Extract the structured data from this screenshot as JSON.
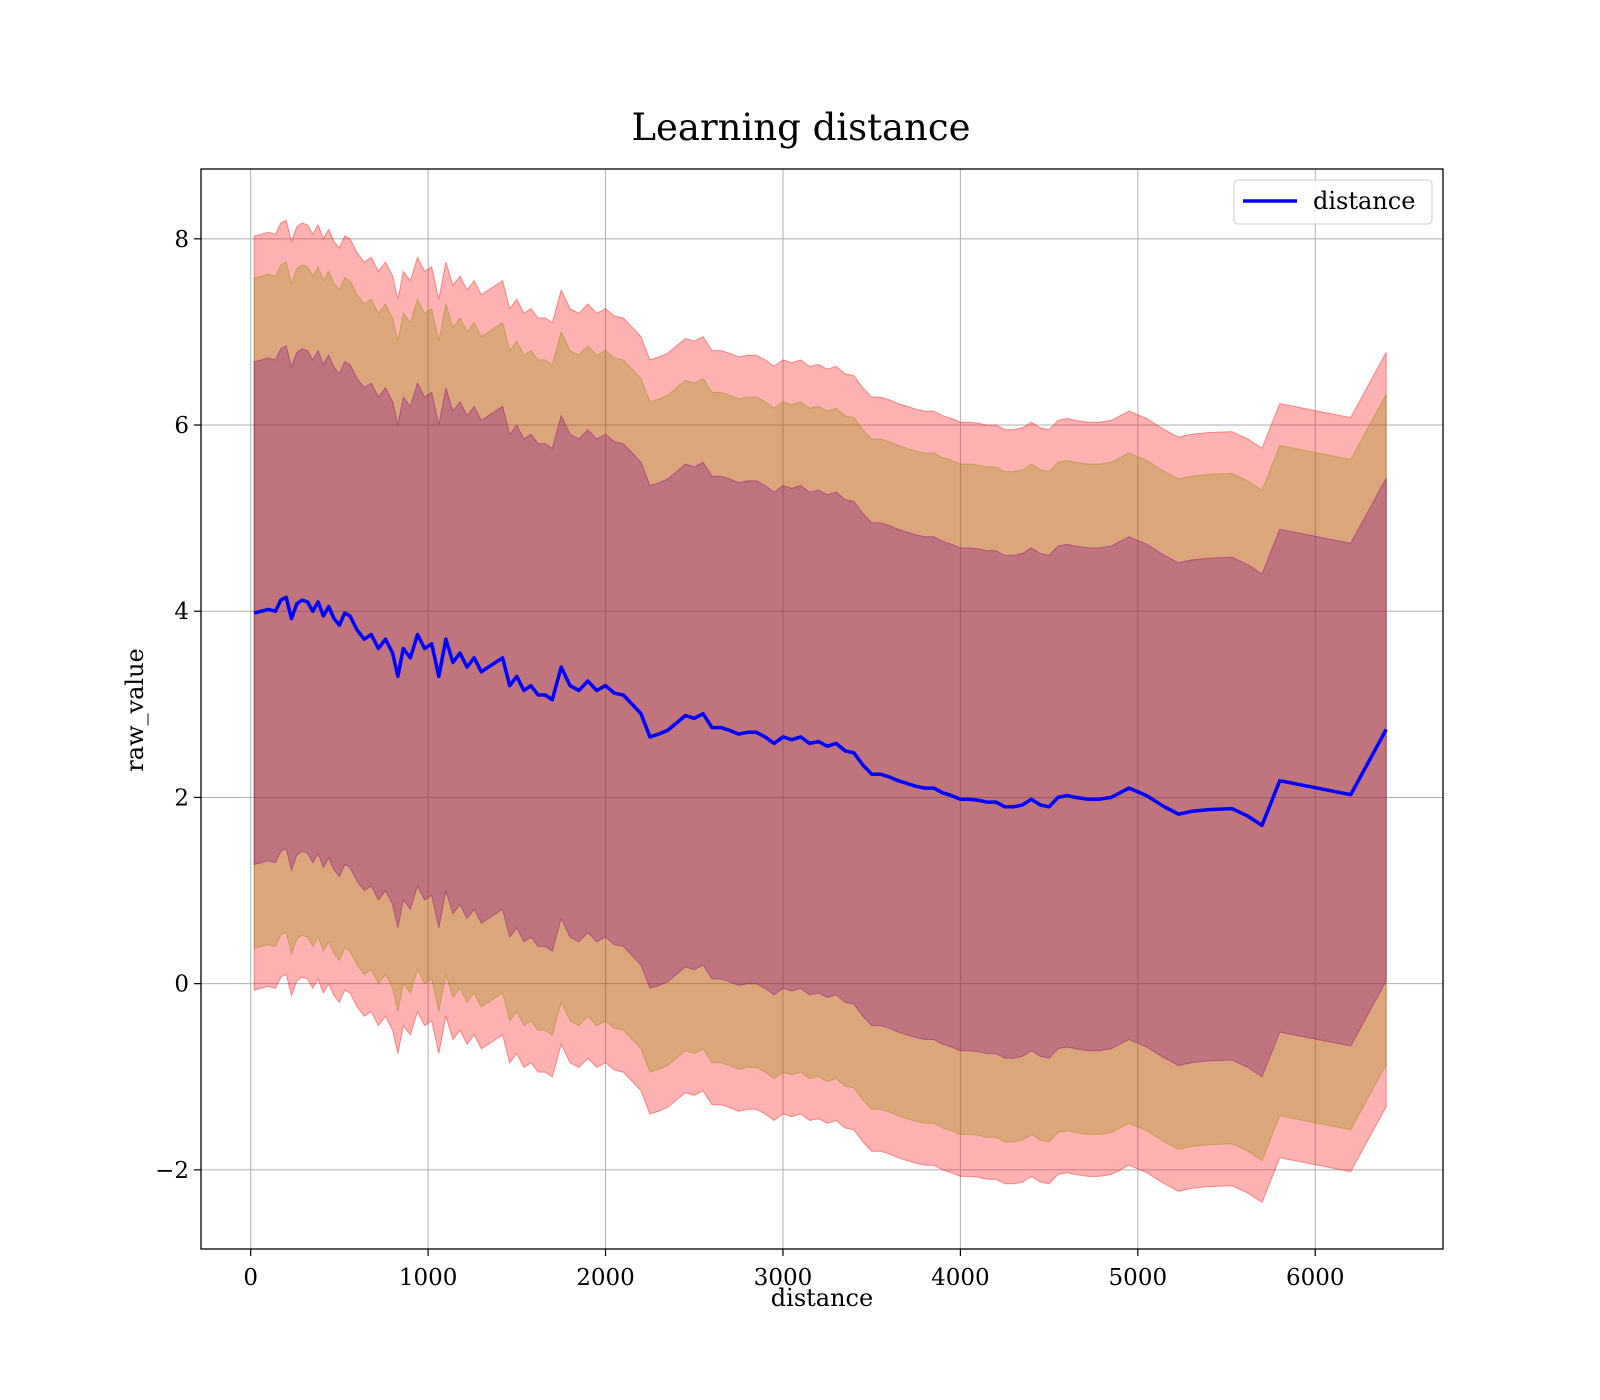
{
  "chart_data": {
    "type": "line",
    "title": "Learning distance",
    "xlabel": "distance",
    "ylabel": "raw_value",
    "xlim": [
      -280,
      6720
    ],
    "ylim": [
      -2.85,
      8.75
    ],
    "xticks": [
      0,
      1000,
      2000,
      3000,
      4000,
      5000,
      6000
    ],
    "yticks": [
      -2,
      0,
      2,
      4,
      6,
      8
    ],
    "ytick_labels": [
      "−2",
      "0",
      "2",
      "4",
      "6",
      "8"
    ],
    "grid": true,
    "legend": {
      "position": "upper-right",
      "entries": [
        "distance"
      ]
    },
    "colors": {
      "line": "#0000ff",
      "outer_band": "#ff0000",
      "middle_band": "#8b8b00",
      "inner_band": "#800080",
      "grid": "#b0b0b0"
    },
    "band_half_widths": [
      2.7,
      3.6,
      4.05
    ],
    "series": [
      {
        "name": "distance",
        "x": [
          20,
          60,
          100,
          140,
          170,
          200,
          230,
          260,
          290,
          320,
          350,
          380,
          410,
          440,
          470,
          500,
          530,
          560,
          600,
          640,
          680,
          720,
          760,
          800,
          830,
          860,
          900,
          940,
          980,
          1020,
          1060,
          1100,
          1140,
          1180,
          1220,
          1260,
          1300,
          1340,
          1380,
          1420,
          1460,
          1500,
          1540,
          1580,
          1620,
          1660,
          1700,
          1750,
          1800,
          1850,
          1900,
          1950,
          2000,
          2050,
          2100,
          2150,
          2200,
          2250,
          2300,
          2350,
          2400,
          2450,
          2500,
          2550,
          2600,
          2650,
          2700,
          2750,
          2800,
          2850,
          2900,
          2950,
          3000,
          3050,
          3100,
          3150,
          3200,
          3250,
          3300,
          3350,
          3400,
          3450,
          3500,
          3550,
          3600,
          3650,
          3700,
          3750,
          3800,
          3850,
          3900,
          3950,
          4000,
          4050,
          4100,
          4150,
          4200,
          4250,
          4300,
          4350,
          4400,
          4450,
          4500,
          4550,
          4600,
          4650,
          4720,
          4780,
          4850,
          4950,
          5050,
          5150,
          5230,
          5300,
          5400,
          5530,
          5620,
          5700,
          5800,
          6200,
          6400
        ],
        "values": [
          3.98,
          4.0,
          4.02,
          4.0,
          4.12,
          4.15,
          3.92,
          4.08,
          4.12,
          4.1,
          4.0,
          4.1,
          3.95,
          4.05,
          3.92,
          3.85,
          3.98,
          3.95,
          3.8,
          3.7,
          3.75,
          3.6,
          3.7,
          3.55,
          3.3,
          3.6,
          3.5,
          3.75,
          3.6,
          3.65,
          3.3,
          3.7,
          3.45,
          3.55,
          3.4,
          3.5,
          3.35,
          3.4,
          3.45,
          3.5,
          3.2,
          3.3,
          3.15,
          3.2,
          3.1,
          3.1,
          3.05,
          3.4,
          3.2,
          3.15,
          3.25,
          3.15,
          3.2,
          3.12,
          3.1,
          3.0,
          2.9,
          2.65,
          2.68,
          2.72,
          2.8,
          2.88,
          2.85,
          2.9,
          2.75,
          2.75,
          2.72,
          2.68,
          2.7,
          2.7,
          2.65,
          2.58,
          2.65,
          2.62,
          2.65,
          2.58,
          2.6,
          2.55,
          2.58,
          2.5,
          2.48,
          2.35,
          2.25,
          2.25,
          2.22,
          2.18,
          2.15,
          2.12,
          2.1,
          2.1,
          2.05,
          2.02,
          1.98,
          1.98,
          1.97,
          1.95,
          1.95,
          1.9,
          1.9,
          1.92,
          1.98,
          1.92,
          1.9,
          2.0,
          2.02,
          2.0,
          1.98,
          1.98,
          2.0,
          2.1,
          2.02,
          1.9,
          1.82,
          1.85,
          1.87,
          1.88,
          1.8,
          1.7,
          2.18,
          2.03,
          2.73
        ]
      }
    ]
  }
}
